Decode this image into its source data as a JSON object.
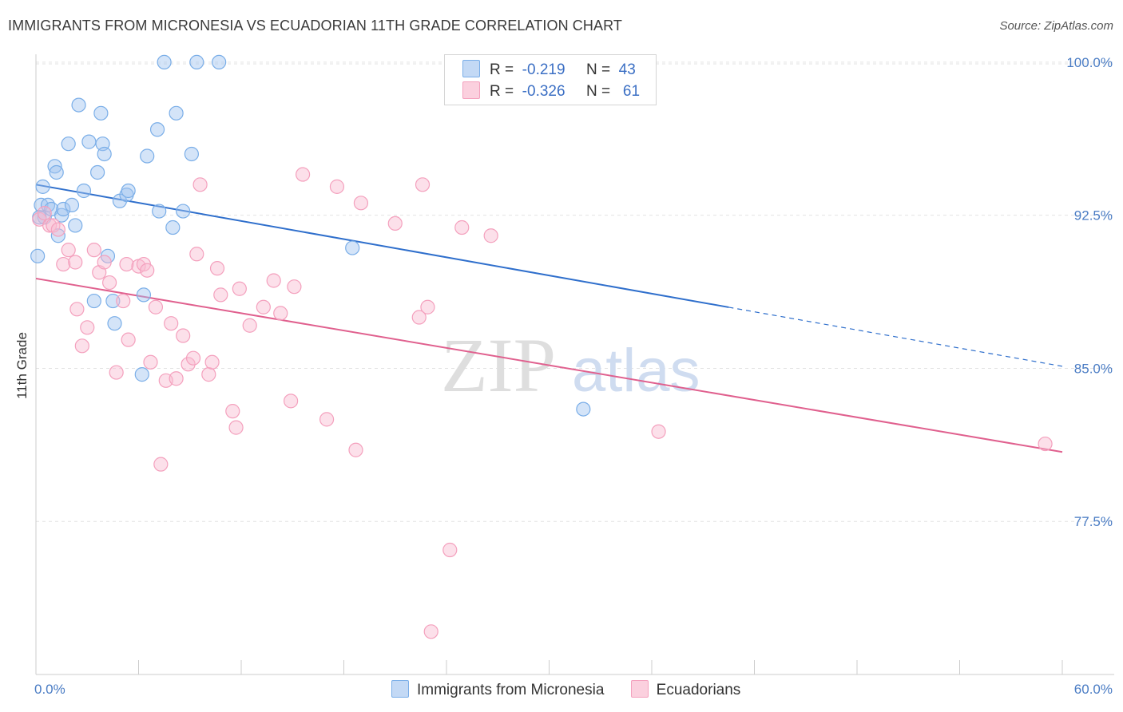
{
  "title": "IMMIGRANTS FROM MICRONESIA VS ECUADORIAN 11TH GRADE CORRELATION CHART",
  "source": "Source: ZipAtlas.com",
  "watermark": {
    "zip": "ZIP",
    "atlas": "atlas"
  },
  "legend": {
    "r_label": "R =",
    "n_label": "N =",
    "series": [
      {
        "r": "-0.219",
        "n": "43"
      },
      {
        "r": "-0.326",
        "n": "61"
      }
    ]
  },
  "chart_data": {
    "type": "scatter",
    "title": "IMMIGRANTS FROM MICRONESIA VS ECUADORIAN 11TH GRADE CORRELATION CHART",
    "xlabel": "",
    "ylabel": "11th Grade",
    "xlim": [
      0,
      60
    ],
    "ylim": [
      70.0,
      100.7
    ],
    "x_tick_labels": [
      "0.0%",
      "60.0%"
    ],
    "y_ticks": [
      77.5,
      85.0,
      92.5,
      100.0
    ],
    "y_tick_labels": [
      "77.5%",
      "85.0%",
      "92.5%",
      "100.0%"
    ],
    "grid": true,
    "series": [
      {
        "name": "Immigrants from Micronesia",
        "color": "#7aaee8",
        "line_color": "#2f6fcc",
        "trend": {
          "x0": 0,
          "y0": 94.0,
          "x1": 60,
          "y1": 85.1,
          "solid_until": 40.5
        },
        "points": [
          [
            0.1,
            90.5
          ],
          [
            0.3,
            93.0
          ],
          [
            0.4,
            93.9
          ],
          [
            0.5,
            92.4
          ],
          [
            0.7,
            93.0
          ],
          [
            0.9,
            92.8
          ],
          [
            1.1,
            94.9
          ],
          [
            1.2,
            94.6
          ],
          [
            1.3,
            91.5
          ],
          [
            1.5,
            92.5
          ],
          [
            1.6,
            92.8
          ],
          [
            1.9,
            96.0
          ],
          [
            2.1,
            93.0
          ],
          [
            2.3,
            92.0
          ],
          [
            2.5,
            97.9
          ],
          [
            2.8,
            93.7
          ],
          [
            3.1,
            96.1
          ],
          [
            3.4,
            88.3
          ],
          [
            3.6,
            94.6
          ],
          [
            3.8,
            97.5
          ],
          [
            3.9,
            96.0
          ],
          [
            4.0,
            95.5
          ],
          [
            4.2,
            90.5
          ],
          [
            4.5,
            88.3
          ],
          [
            4.6,
            87.2
          ],
          [
            4.9,
            93.2
          ],
          [
            5.3,
            93.5
          ],
          [
            5.4,
            93.7
          ],
          [
            6.2,
            84.7
          ],
          [
            6.3,
            88.6
          ],
          [
            6.5,
            95.4
          ],
          [
            7.1,
            96.7
          ],
          [
            7.2,
            92.7
          ],
          [
            7.5,
            100.0
          ],
          [
            8.0,
            91.9
          ],
          [
            8.2,
            97.5
          ],
          [
            8.6,
            92.7
          ],
          [
            9.1,
            95.5
          ],
          [
            9.4,
            100.0
          ],
          [
            10.7,
            100.0
          ],
          [
            18.5,
            90.9
          ],
          [
            32.0,
            83.0
          ],
          [
            0.2,
            92.4
          ]
        ]
      },
      {
        "name": "Ecuadorians",
        "color": "#f4a0bd",
        "line_color": "#e0608e",
        "trend": {
          "x0": 0,
          "y0": 89.4,
          "x1": 60,
          "y1": 80.9
        },
        "points": [
          [
            0.2,
            92.3
          ],
          [
            0.5,
            92.6
          ],
          [
            0.8,
            92.0
          ],
          [
            1.0,
            92.0
          ],
          [
            1.3,
            91.8
          ],
          [
            1.6,
            90.1
          ],
          [
            1.9,
            90.8
          ],
          [
            2.3,
            90.2
          ],
          [
            2.4,
            87.9
          ],
          [
            2.7,
            86.1
          ],
          [
            3.0,
            87.0
          ],
          [
            3.4,
            90.8
          ],
          [
            3.7,
            89.7
          ],
          [
            4.0,
            90.2
          ],
          [
            4.3,
            89.2
          ],
          [
            4.7,
            84.8
          ],
          [
            5.1,
            88.3
          ],
          [
            5.3,
            90.1
          ],
          [
            5.4,
            86.4
          ],
          [
            6.0,
            90.0
          ],
          [
            6.3,
            90.1
          ],
          [
            6.5,
            89.8
          ],
          [
            6.7,
            85.3
          ],
          [
            7.0,
            88.0
          ],
          [
            7.3,
            80.3
          ],
          [
            7.6,
            84.4
          ],
          [
            7.9,
            87.2
          ],
          [
            8.2,
            84.5
          ],
          [
            8.6,
            86.6
          ],
          [
            8.9,
            85.2
          ],
          [
            9.2,
            85.5
          ],
          [
            9.4,
            90.6
          ],
          [
            9.6,
            94.0
          ],
          [
            10.1,
            84.7
          ],
          [
            10.3,
            85.3
          ],
          [
            10.6,
            89.9
          ],
          [
            10.8,
            88.6
          ],
          [
            11.5,
            82.9
          ],
          [
            11.7,
            82.1
          ],
          [
            11.9,
            88.9
          ],
          [
            12.5,
            87.1
          ],
          [
            13.3,
            88.0
          ],
          [
            13.9,
            89.3
          ],
          [
            14.3,
            87.7
          ],
          [
            14.9,
            83.4
          ],
          [
            15.1,
            89.0
          ],
          [
            15.6,
            94.5
          ],
          [
            17.0,
            82.5
          ],
          [
            17.6,
            93.9
          ],
          [
            18.7,
            81.0
          ],
          [
            19.0,
            93.1
          ],
          [
            21.0,
            92.1
          ],
          [
            22.4,
            87.5
          ],
          [
            22.6,
            94.0
          ],
          [
            22.9,
            88.0
          ],
          [
            23.1,
            72.1
          ],
          [
            24.2,
            76.1
          ],
          [
            24.9,
            91.9
          ],
          [
            26.6,
            91.5
          ],
          [
            36.4,
            81.9
          ],
          [
            59.0,
            81.3
          ]
        ]
      }
    ]
  }
}
